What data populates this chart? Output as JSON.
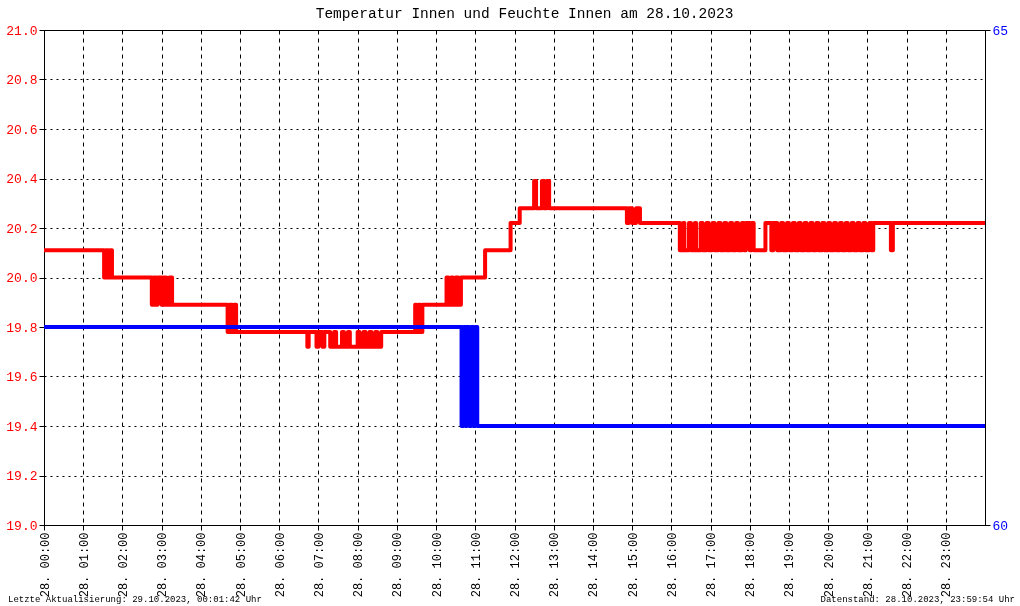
{
  "chart_data": {
    "type": "step",
    "title": "Temperatur Innen und Feuchte Innen am 28.10.2023",
    "annotations": [
      "Letzte Aktualisierung: 29.10.2023, 00:01:42 Uhr",
      "Datenstand: 28.10.2023, 23:59:54 Uhr"
    ],
    "xlim": [
      "2023-10-28T00:00",
      "2023-10-29T00:00"
    ],
    "xticks": [
      {
        "value": "2023-10-28T00:00",
        "label": "28. 00:00"
      },
      {
        "value": "2023-10-28T01:00",
        "label": "28. 01:00"
      },
      {
        "value": "2023-10-28T02:00",
        "label": "28. 02:00"
      },
      {
        "value": "2023-10-28T03:00",
        "label": "28. 03:00"
      },
      {
        "value": "2023-10-28T04:00",
        "label": "28. 04:00"
      },
      {
        "value": "2023-10-28T05:00",
        "label": "28. 05:00"
      },
      {
        "value": "2023-10-28T06:00",
        "label": "28. 06:00"
      },
      {
        "value": "2023-10-28T07:00",
        "label": "28. 07:00"
      },
      {
        "value": "2023-10-28T08:00",
        "label": "28. 08:00"
      },
      {
        "value": "2023-10-28T09:00",
        "label": "28. 09:00"
      },
      {
        "value": "2023-10-28T10:00",
        "label": "28. 10:00"
      },
      {
        "value": "2023-10-28T11:00",
        "label": "28. 11:00"
      },
      {
        "value": "2023-10-28T12:00",
        "label": "28. 12:00"
      },
      {
        "value": "2023-10-28T13:00",
        "label": "28. 13:00"
      },
      {
        "value": "2023-10-28T14:00",
        "label": "28. 14:00"
      },
      {
        "value": "2023-10-28T15:00",
        "label": "28. 15:00"
      },
      {
        "value": "2023-10-28T16:00",
        "label": "28. 16:00"
      },
      {
        "value": "2023-10-28T17:00",
        "label": "28. 17:00"
      },
      {
        "value": "2023-10-28T18:00",
        "label": "28. 18:00"
      },
      {
        "value": "2023-10-28T19:00",
        "label": "28. 19:00"
      },
      {
        "value": "2023-10-28T20:00",
        "label": "28. 20:00"
      },
      {
        "value": "2023-10-28T21:00",
        "label": "28. 21:00"
      },
      {
        "value": "2023-10-28T22:00",
        "label": "28. 22:00"
      },
      {
        "value": "2023-10-28T23:00",
        "label": "28. 23:00"
      }
    ],
    "ylim": [
      19.0,
      21.0
    ],
    "yticks": [
      {
        "value": 19.0,
        "label": "19.0"
      },
      19.2,
      19.4,
      19.6,
      19.8,
      {
        "value": 20.0,
        "label": "20.0"
      },
      20.2,
      20.4,
      20.6,
      20.8,
      {
        "value": 21.0,
        "label": "21.0"
      }
    ],
    "y2lim": [
      60,
      65
    ],
    "y2ticks": [
      60,
      65
    ],
    "grid": true,
    "series": [
      {
        "color": "#ff0000",
        "x": [
          "2023-10-28T00:00",
          "2023-10-28T01:32",
          "2023-10-28T01:35",
          "2023-10-28T01:38",
          "2023-10-28T01:41",
          "2023-10-28T01:44",
          "2023-10-28T02:45",
          "2023-10-28T02:48",
          "2023-10-28T02:51",
          "2023-10-28T02:54",
          "2023-10-28T03:00",
          "2023-10-28T03:03",
          "2023-10-28T03:07",
          "2023-10-28T03:12",
          "2023-10-28T03:16",
          "2023-10-28T04:41",
          "2023-10-28T04:44",
          "2023-10-28T04:48",
          "2023-10-28T04:51",
          "2023-10-28T04:54",
          "2023-10-28T06:43",
          "2023-10-28T06:45",
          "2023-10-28T06:57",
          "2023-10-28T07:00",
          "2023-10-28T07:06",
          "2023-10-28T07:09",
          "2023-10-28T07:18",
          "2023-10-28T07:24",
          "2023-10-28T07:27",
          "2023-10-28T07:36",
          "2023-10-28T07:39",
          "2023-10-28T07:45",
          "2023-10-28T07:48",
          "2023-10-28T08:00",
          "2023-10-28T08:03",
          "2023-10-28T08:09",
          "2023-10-28T08:12",
          "2023-10-28T08:18",
          "2023-10-28T08:21",
          "2023-10-28T08:27",
          "2023-10-28T08:30",
          "2023-10-28T08:36",
          "2023-10-28T09:28",
          "2023-10-28T09:30",
          "2023-10-28T09:33",
          "2023-10-28T09:36",
          "2023-10-28T09:39",
          "2023-10-28T10:16",
          "2023-10-28T10:19",
          "2023-10-28T10:23",
          "2023-10-28T10:26",
          "2023-10-28T10:30",
          "2023-10-28T10:34",
          "2023-10-28T10:38",
          "2023-10-28T11:15",
          "2023-10-28T11:54",
          "2023-10-28T12:08",
          "2023-10-28T12:30",
          "2023-10-28T12:33",
          "2023-10-28T12:42",
          "2023-10-28T12:45",
          "2023-10-28T12:49",
          "2023-10-28T12:53",
          "2023-10-28T14:52",
          "2023-10-28T14:55",
          "2023-10-28T15:00",
          "2023-10-28T15:06",
          "2023-10-28T15:12",
          "2023-10-28T16:13",
          "2023-10-28T16:18",
          "2023-10-28T16:20",
          "2023-10-28T16:27",
          "2023-10-28T16:30",
          "2023-10-28T16:36",
          "2023-10-28T16:38",
          "2023-10-28T16:45",
          "2023-10-28T16:48",
          "2023-10-28T16:54",
          "2023-10-28T16:57",
          "2023-10-28T17:03",
          "2023-10-28T17:06",
          "2023-10-28T17:12",
          "2023-10-28T17:15",
          "2023-10-28T17:21",
          "2023-10-28T17:24",
          "2023-10-28T17:30",
          "2023-10-28T17:33",
          "2023-10-28T17:39",
          "2023-10-28T17:42",
          "2023-10-28T17:48",
          "2023-10-28T17:51",
          "2023-10-28T17:54",
          "2023-10-28T18:00",
          "2023-10-28T18:03",
          "2023-10-28T18:06",
          "2023-10-28T18:24",
          "2023-10-28T18:33",
          "2023-10-28T18:36",
          "2023-10-28T18:42",
          "2023-10-28T18:48",
          "2023-10-28T18:51",
          "2023-10-28T18:57",
          "2023-10-28T19:00",
          "2023-10-28T19:06",
          "2023-10-28T19:09",
          "2023-10-28T19:15",
          "2023-10-28T19:18",
          "2023-10-28T19:24",
          "2023-10-28T19:27",
          "2023-10-28T19:33",
          "2023-10-28T19:36",
          "2023-10-28T19:42",
          "2023-10-28T19:45",
          "2023-10-28T19:51",
          "2023-10-28T19:54",
          "2023-10-28T20:00",
          "2023-10-28T20:03",
          "2023-10-28T20:09",
          "2023-10-28T20:12",
          "2023-10-28T20:18",
          "2023-10-28T20:21",
          "2023-10-28T20:27",
          "2023-10-28T20:30",
          "2023-10-28T20:36",
          "2023-10-28T20:39",
          "2023-10-28T20:45",
          "2023-10-28T20:48",
          "2023-10-28T20:54",
          "2023-10-28T20:57",
          "2023-10-28T21:03",
          "2023-10-28T21:06",
          "2023-10-28T21:09",
          "2023-10-28T21:36",
          "2023-10-28T21:39",
          "2023-10-29T00:00"
        ],
        "values": [
          20.11,
          20.0,
          20.11,
          20.0,
          20.11,
          20.0,
          19.89,
          20.0,
          19.89,
          20.0,
          19.89,
          20.0,
          19.89,
          20.0,
          19.89,
          19.78,
          19.89,
          19.78,
          19.89,
          19.78,
          19.72,
          19.78,
          19.72,
          19.78,
          19.72,
          19.78,
          19.72,
          19.78,
          19.72,
          19.78,
          19.72,
          19.78,
          19.72,
          19.78,
          19.72,
          19.78,
          19.72,
          19.78,
          19.72,
          19.78,
          19.72,
          19.78,
          19.89,
          19.78,
          19.89,
          19.78,
          19.89,
          20.0,
          19.89,
          20.0,
          19.89,
          20.0,
          19.89,
          20.0,
          20.11,
          20.22,
          20.28,
          20.39,
          20.28,
          20.39,
          20.28,
          20.39,
          20.28,
          20.22,
          20.28,
          20.22,
          20.28,
          20.22,
          20.11,
          20.22,
          20.11,
          20.22,
          20.11,
          20.22,
          20.11,
          20.22,
          20.11,
          20.22,
          20.11,
          20.22,
          20.11,
          20.22,
          20.11,
          20.22,
          20.11,
          20.22,
          20.11,
          20.22,
          20.11,
          20.22,
          20.11,
          20.22,
          20.11,
          20.22,
          20.11,
          20.22,
          20.11,
          20.22,
          20.11,
          20.22,
          20.11,
          20.22,
          20.11,
          20.22,
          20.11,
          20.22,
          20.11,
          20.22,
          20.11,
          20.22,
          20.11,
          20.22,
          20.11,
          20.22,
          20.11,
          20.22,
          20.11,
          20.22,
          20.11,
          20.22,
          20.11,
          20.22,
          20.11,
          20.22,
          20.11,
          20.22,
          20.11,
          20.22,
          20.11,
          20.22,
          20.11,
          20.22,
          20.11,
          20.22,
          20.22
        ]
      },
      {
        "color": "#0000ff",
        "axis": "y2",
        "x": [
          "2023-10-28T00:00",
          "2023-10-28T10:39",
          "2023-10-28T10:42",
          "2023-10-28T10:45",
          "2023-10-28T10:47",
          "2023-10-28T10:51",
          "2023-10-28T10:54",
          "2023-10-28T10:57",
          "2023-10-28T11:00",
          "2023-10-28T11:03",
          "2023-10-29T00:00"
        ],
        "values": [
          62,
          61,
          62,
          61,
          62,
          61,
          62,
          61,
          62,
          61,
          61
        ]
      }
    ]
  }
}
